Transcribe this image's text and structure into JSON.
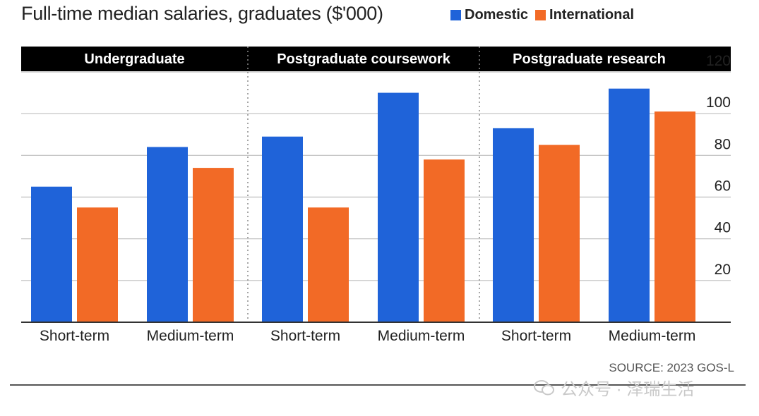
{
  "chart_data": {
    "type": "bar",
    "title": "Full-time median salaries, graduates ($'000)",
    "groups": [
      "Undergraduate",
      "Postgraduate coursework",
      "Postgraduate research"
    ],
    "categories": [
      "Short-term",
      "Medium-term",
      "Short-term",
      "Medium-term",
      "Short-term",
      "Medium-term"
    ],
    "series": [
      {
        "name": "Domestic",
        "color": "#1f63d9",
        "values": [
          65,
          84,
          89,
          110,
          93,
          112
        ]
      },
      {
        "name": "International",
        "color": "#f26a26",
        "values": [
          55,
          74,
          55,
          78,
          85,
          101
        ]
      }
    ],
    "ylim": [
      0,
      120
    ],
    "yticks": [
      "20",
      "40",
      "60",
      "80",
      "100",
      "120"
    ],
    "grid": true,
    "legend": "top-right",
    "source": "SOURCE: 2023 GOS-L"
  },
  "watermark": "公众号 · 泽瑞生活"
}
